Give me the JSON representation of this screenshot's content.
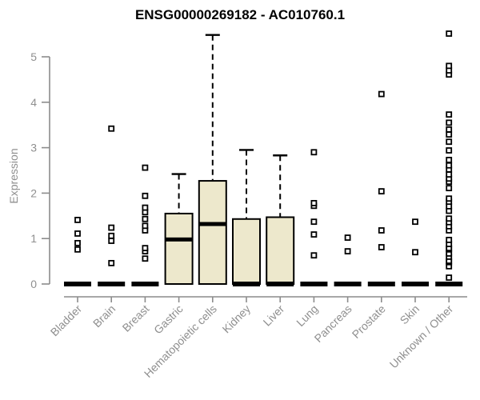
{
  "chart_data": {
    "type": "boxplot",
    "title": "ENSG00000269182 - AC010760.1",
    "ylabel": "Expression",
    "xlabel": "",
    "ylim": [
      0,
      5.6
    ],
    "yticks": [
      0,
      1,
      2,
      3,
      4,
      5
    ],
    "grid": false,
    "legend": "none",
    "colors": {
      "box_fill": "#ede8cc",
      "box_stroke": "#000000",
      "median": "#000000",
      "whisker": "#000000",
      "outlier_stroke": "#000000",
      "outlier_fill": "#ffffff",
      "axis": "#8c8c8c",
      "tick_label": "#8f8f8f",
      "title": "#000000"
    },
    "categories": [
      "Bladder",
      "Brain",
      "Breast",
      "Gastric",
      "Hematopoietic cells",
      "Kidney",
      "Liver",
      "Lung",
      "Pancreas",
      "Prostate",
      "Skin",
      "Unknown / Other"
    ],
    "series": [
      {
        "category": "Bladder",
        "min": 0,
        "q1": 0,
        "median": 0,
        "q3": 0,
        "whisker_high": 0,
        "outliers": [
          0.76,
          0.9,
          1.11,
          1.41
        ]
      },
      {
        "category": "Brain",
        "min": 0,
        "q1": 0,
        "median": 0,
        "q3": 0,
        "whisker_high": 0,
        "outliers": [
          0.46,
          0.95,
          1.06,
          1.24,
          3.42
        ]
      },
      {
        "category": "Breast",
        "min": 0,
        "q1": 0,
        "median": 0,
        "q3": 0,
        "whisker_high": 0,
        "outliers": [
          0.56,
          0.72,
          0.79,
          1.18,
          1.28,
          1.43,
          1.58,
          1.68,
          1.94,
          2.56
        ]
      },
      {
        "category": "Gastric",
        "min": 0,
        "q1": 0,
        "median": 0.98,
        "q3": 1.55,
        "whisker_high": 2.42,
        "outliers": []
      },
      {
        "category": "Hematopoietic cells",
        "min": 0,
        "q1": 0,
        "median": 1.32,
        "q3": 2.27,
        "whisker_high": 5.48,
        "outliers": []
      },
      {
        "category": "Kidney",
        "min": 0,
        "q1": 0,
        "median": 0,
        "q3": 1.43,
        "whisker_high": 2.95,
        "outliers": []
      },
      {
        "category": "Liver",
        "min": 0,
        "q1": 0,
        "median": 0,
        "q3": 1.47,
        "whisker_high": 2.83,
        "outliers": []
      },
      {
        "category": "Lung",
        "min": 0,
        "q1": 0,
        "median": 0,
        "q3": 0,
        "whisker_high": 0,
        "outliers": [
          0.63,
          1.09,
          1.37,
          1.72,
          1.78,
          2.9
        ]
      },
      {
        "category": "Pancreas",
        "min": 0,
        "q1": 0,
        "median": 0,
        "q3": 0,
        "whisker_high": 0,
        "outliers": [
          0.72,
          1.02
        ]
      },
      {
        "category": "Prostate",
        "min": 0,
        "q1": 0,
        "median": 0,
        "q3": 0,
        "whisker_high": 0,
        "outliers": [
          0.81,
          1.18,
          2.04,
          4.18
        ]
      },
      {
        "category": "Skin",
        "min": 0,
        "q1": 0,
        "median": 0,
        "q3": 0,
        "whisker_high": 0,
        "outliers": [
          0.7,
          1.37
        ]
      },
      {
        "category": "Unknown / Other",
        "min": 0,
        "q1": 0,
        "median": 0,
        "q3": 0,
        "whisker_high": 0,
        "outliers": [
          0.14,
          0.39,
          0.48,
          0.51,
          0.6,
          0.67,
          0.76,
          0.79,
          0.88,
          0.97,
          1.18,
          1.27,
          1.36,
          1.44,
          1.61,
          1.71,
          1.81,
          1.88,
          2.11,
          2.25,
          2.32,
          2.41,
          2.52,
          2.61,
          2.73,
          2.94,
          3.13,
          3.29,
          3.4,
          3.55,
          3.73,
          4.61,
          4.7,
          4.8,
          5.51
        ]
      }
    ]
  }
}
